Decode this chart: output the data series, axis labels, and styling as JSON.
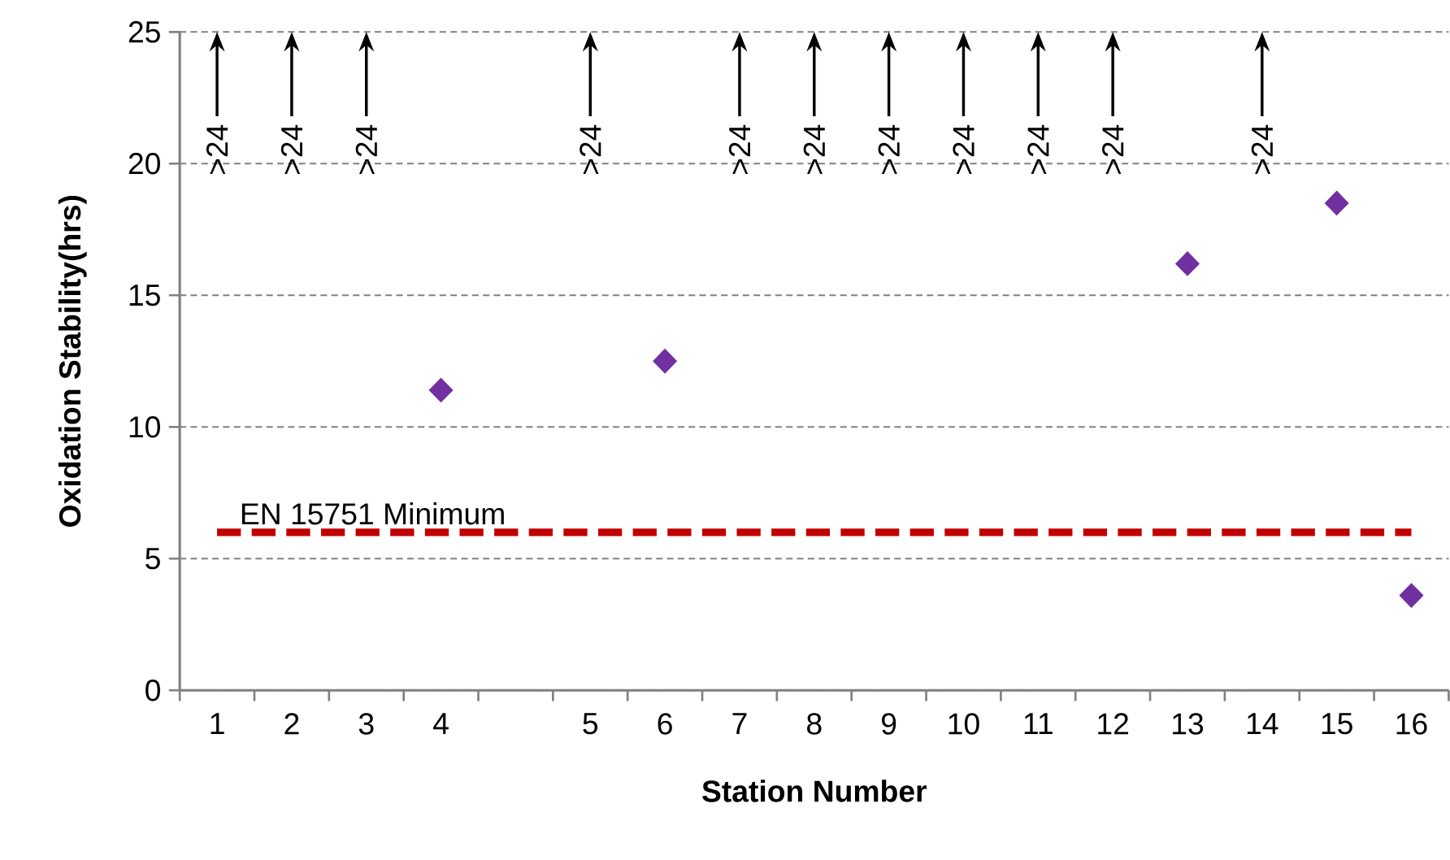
{
  "chart_data": {
    "type": "scatter",
    "xlabel": "Station Number",
    "ylabel": "Oxidation Stability(hrs)",
    "categories": [
      "1",
      "2",
      "3",
      "4",
      null,
      "5",
      "6",
      "7",
      "8",
      "9",
      "10",
      "11",
      "12",
      "13",
      "14",
      "15",
      "16"
    ],
    "values": [
      null,
      null,
      null,
      11.4,
      null,
      null,
      12.5,
      null,
      null,
      null,
      null,
      null,
      null,
      16.2,
      null,
      18.5,
      3.6
    ],
    "color": "#7030a0",
    "marker": "diamond",
    "ylim": [
      0,
      25
    ],
    "yticks": [
      0,
      5,
      10,
      15,
      20,
      25
    ],
    "grid": "y",
    "ref_lines": [
      {
        "axis": "y",
        "value": 6,
        "label": "EN 15751 Minimum",
        "color": "#c00000",
        "line_style": "dashed"
      }
    ],
    "annotations": [
      ">24",
      ">24",
      ">24",
      ">24",
      ">24",
      ">24",
      ">24",
      ">24",
      ">24",
      ">24",
      ">24"
    ]
  }
}
